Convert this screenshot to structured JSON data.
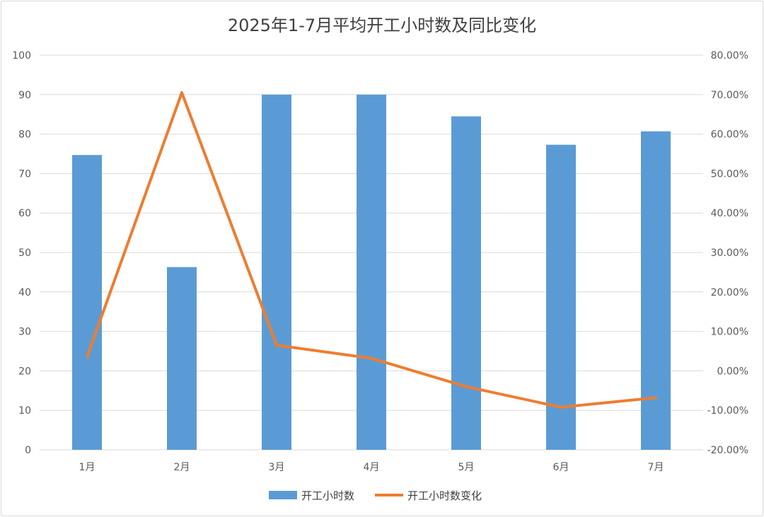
{
  "chart_data": {
    "type": "bar",
    "title": "2025年1-7月平均开工小时数及同比变化",
    "categories": [
      "1月",
      "2月",
      "3月",
      "4月",
      "5月",
      "6月",
      "7月"
    ],
    "series": [
      {
        "name": "开工小时数",
        "type": "bar",
        "axis": "left",
        "color": "#5b9bd5",
        "values": [
          74.7,
          46.3,
          90.0,
          90.0,
          84.5,
          77.3,
          80.7
        ]
      },
      {
        "name": "开工小时数变化",
        "type": "line",
        "axis": "right",
        "color": "#ed7d31",
        "values": [
          3.5,
          70.5,
          6.5,
          3.2,
          -4.0,
          -9.2,
          -6.8
        ]
      }
    ],
    "y_left": {
      "range": [
        0,
        100
      ],
      "ticks": [
        0,
        10,
        20,
        30,
        40,
        50,
        60,
        70,
        80,
        90,
        100
      ],
      "tick_labels": [
        "0",
        "10",
        "20",
        "30",
        "40",
        "50",
        "60",
        "70",
        "80",
        "90",
        "100"
      ]
    },
    "y_right": {
      "range": [
        -20,
        80
      ],
      "unit": "%",
      "ticks": [
        -20,
        -10,
        0,
        10,
        20,
        30,
        40,
        50,
        60,
        70,
        80
      ],
      "tick_labels": [
        "-20.00%",
        "-10.00%",
        "0.00%",
        "10.00%",
        "20.00%",
        "30.00%",
        "40.00%",
        "50.00%",
        "60.00%",
        "70.00%",
        "80.00%"
      ]
    },
    "grid": true,
    "legend_position": "bottom",
    "gridline_color": "#d9d9d9"
  }
}
